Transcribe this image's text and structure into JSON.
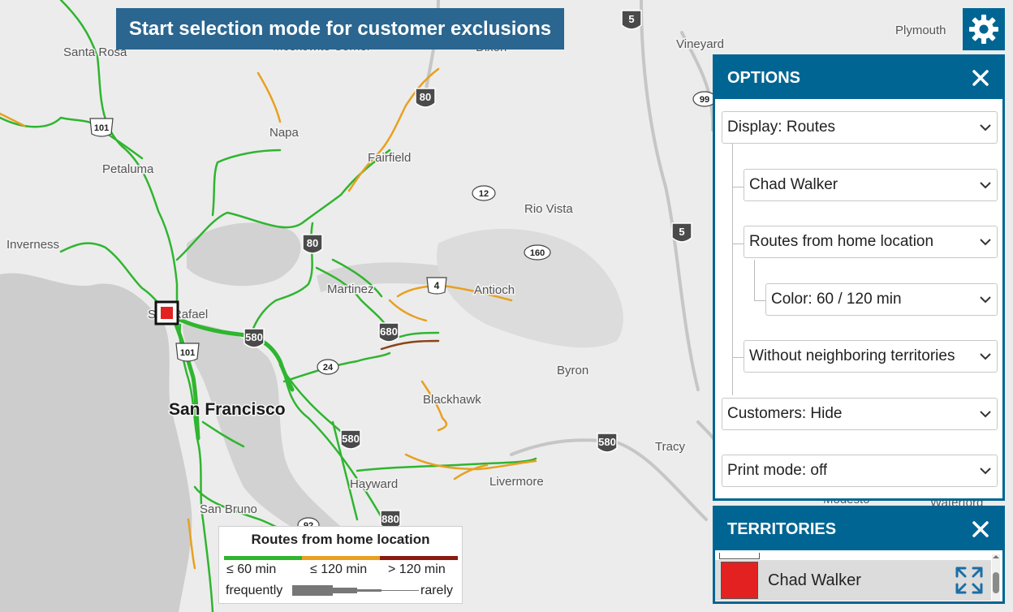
{
  "toolbar": {
    "selection_label": "Start selection mode for customer exclusions"
  },
  "icons": {
    "settings": "gear-icon",
    "close": "close-icon",
    "zoom_to": "expand-arrows-icon",
    "dropdown": "chevron-down-icon"
  },
  "colors": {
    "panel_header": "#006592",
    "route_frequent": "#2fb52f",
    "route_medium": "#e8a020",
    "route_rare": "#8a1a10",
    "territory": "#e32121"
  },
  "options_panel": {
    "title": "OPTIONS",
    "display": "Display: Routes",
    "person": "Chad Walker",
    "routes_mode": "Routes from home location",
    "color": "Color: 60 / 120 min",
    "neighbors": "Without neighboring territories",
    "customers": "Customers: Hide",
    "print_mode": "Print mode: off"
  },
  "territories_panel": {
    "title": "TERRITORIES",
    "items": [
      {
        "name": "Chad Walker",
        "color": "#e32121"
      }
    ]
  },
  "legend": {
    "title": "Routes from home location",
    "bands": [
      "≤ 60 min",
      "≤ 120 min",
      "> 120 min"
    ],
    "frequency_left": "frequently",
    "frequency_right": "rarely"
  },
  "map": {
    "places": [
      "Santa Rosa",
      "Moskowite Corner",
      "Dixon",
      "Vineyard",
      "Plymouth",
      "Napa",
      "Fairfield",
      "Petaluma",
      "Rio Vista",
      "Inverness",
      "Martinez",
      "Antioch",
      "San Rafael",
      "Byron",
      "San Francisco",
      "Blackhawk",
      "Tracy",
      "Livermore",
      "Hayward",
      "San Bruno",
      "Modesto",
      "Waterford"
    ],
    "shields": {
      "interstates": [
        "5",
        "80",
        "80",
        "580",
        "680",
        "4",
        "580",
        "580",
        "880",
        "5"
      ],
      "us_routes": [
        "101",
        "101"
      ],
      "state_routes": [
        "12",
        "160",
        "99",
        "24",
        "92"
      ]
    }
  }
}
